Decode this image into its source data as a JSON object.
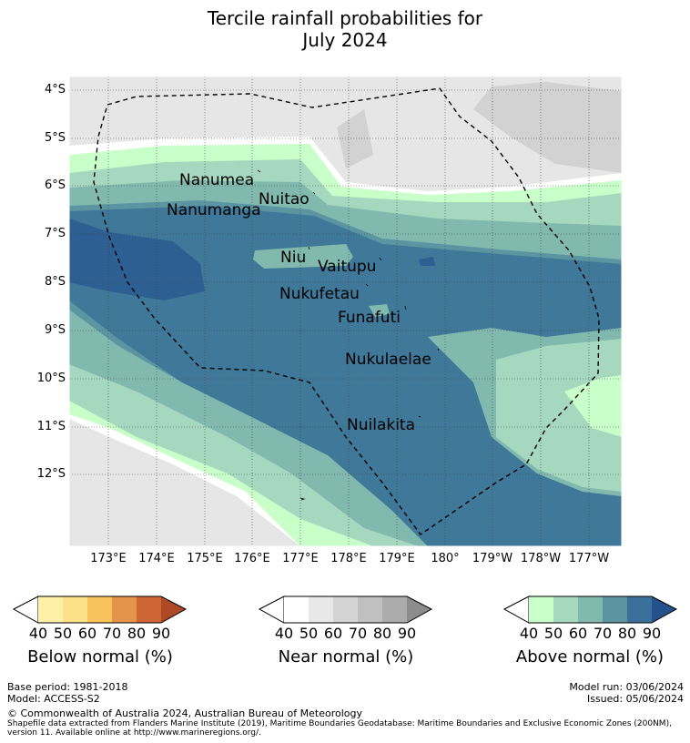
{
  "title": {
    "line1": "Tercile rainfall probabilities for",
    "line2": "July 2024"
  },
  "map": {
    "lat_labels": [
      "4°S",
      "5°S",
      "6°S",
      "7°S",
      "8°S",
      "9°S",
      "10°S",
      "11°S",
      "12°S"
    ],
    "lon_labels": [
      "173°E",
      "174°E",
      "175°E",
      "176°E",
      "177°E",
      "178°E",
      "179°E",
      "180°",
      "179°W",
      "178°W",
      "177°W"
    ],
    "places": [
      {
        "name": "Nanumea"
      },
      {
        "name": "Nuitao"
      },
      {
        "name": "Nanumanga"
      },
      {
        "name": "Niu"
      },
      {
        "name": "Vaitupu"
      },
      {
        "name": "Nukufetau"
      },
      {
        "name": "Funafuti"
      },
      {
        "name": "Nukulaelae"
      },
      {
        "name": "Nuilakita"
      }
    ]
  },
  "legend": {
    "ticks": [
      "40",
      "50",
      "60",
      "70",
      "80",
      "90"
    ],
    "below": {
      "label": "Below normal (%)",
      "colors": [
        "#fff0a8",
        "#fde08a",
        "#f8c25c",
        "#e5954a",
        "#cf6535",
        "#ad4a26"
      ]
    },
    "near": {
      "label": "Near normal (%)",
      "colors": [
        "#ffffff",
        "#e8e8e8",
        "#d4d4d4",
        "#c0c0c0",
        "#acacac",
        "#8c8c8c"
      ]
    },
    "above": {
      "label": "Above normal (%)",
      "colors": [
        "#c9ffc9",
        "#a6d8bf",
        "#82b9ae",
        "#5b95a1",
        "#3a7099",
        "#24508b"
      ]
    }
  },
  "footer": {
    "base_period": "Base period: 1981-2018",
    "model": "Model: ACCESS-S2",
    "model_run": "Model run: 03/06/2024",
    "issued": "Issued: 05/06/2024",
    "copyright": "© Commonwealth of Australia 2024, Australian Bureau of Meteorology",
    "shapefile_line1": "Shapefile data extracted from Flanders Marine Institute (2019), Maritime Boundaries Geodatabase: Maritime Boundaries and Exclusive Economic Zones (200NM),",
    "shapefile_line2": "version 11. Available online at http://www.marineregions.org/."
  }
}
